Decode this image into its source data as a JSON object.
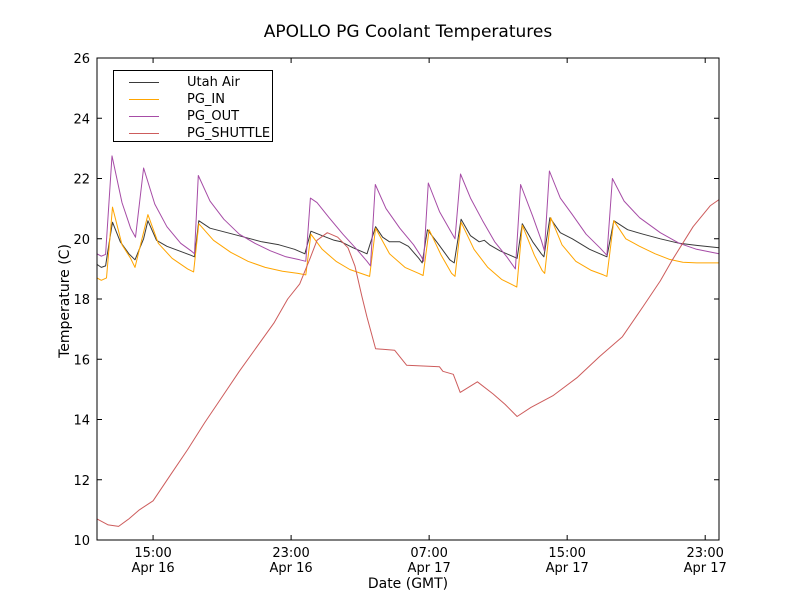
{
  "chart_data": {
    "type": "line",
    "title": "APOLLO PG Coolant Temperatures",
    "xlabel": "Date (GMT)",
    "ylabel": "Temperature (C)",
    "legend_position": "upper-left",
    "grid": false,
    "axes": {
      "x_unit": "hours since Apr 16 00:00 GMT",
      "x_range": [
        11.75,
        47.8
      ],
      "y_range": [
        10,
        26
      ]
    },
    "x_ticks": [
      {
        "t": 15,
        "time": "15:00",
        "date": "Apr 16"
      },
      {
        "t": 23,
        "time": "23:00",
        "date": "Apr 16"
      },
      {
        "t": 31,
        "time": "07:00",
        "date": "Apr 17"
      },
      {
        "t": 39,
        "time": "15:00",
        "date": "Apr 17"
      },
      {
        "t": 47,
        "time": "23:00",
        "date": "Apr 17"
      }
    ],
    "y_ticks": [
      10,
      12,
      14,
      16,
      18,
      20,
      22,
      24,
      26
    ],
    "series": [
      {
        "name": "Utah Air",
        "color": "#3a3a3a",
        "points": [
          [
            11.75,
            19.15
          ],
          [
            12.0,
            19.05
          ],
          [
            12.25,
            19.1
          ],
          [
            12.35,
            19.5
          ],
          [
            12.65,
            20.55
          ],
          [
            13.1,
            19.9
          ],
          [
            13.6,
            19.5
          ],
          [
            13.95,
            19.3
          ],
          [
            14.45,
            20.0
          ],
          [
            14.7,
            20.6
          ],
          [
            15.2,
            19.95
          ],
          [
            15.8,
            19.75
          ],
          [
            16.5,
            19.6
          ],
          [
            17.2,
            19.45
          ],
          [
            17.4,
            19.4
          ],
          [
            17.65,
            20.6
          ],
          [
            18.3,
            20.35
          ],
          [
            19.3,
            20.2
          ],
          [
            20.3,
            20.05
          ],
          [
            21.3,
            19.9
          ],
          [
            22.3,
            19.8
          ],
          [
            23.2,
            19.65
          ],
          [
            23.8,
            19.5
          ],
          [
            24.15,
            20.25
          ],
          [
            24.8,
            20.1
          ],
          [
            25.5,
            19.95
          ],
          [
            25.9,
            19.9
          ],
          [
            26.6,
            19.7
          ],
          [
            27.4,
            19.5
          ],
          [
            27.9,
            20.4
          ],
          [
            28.3,
            20.05
          ],
          [
            28.7,
            19.9
          ],
          [
            29.3,
            19.9
          ],
          [
            29.8,
            19.75
          ],
          [
            30.4,
            19.35
          ],
          [
            30.6,
            19.2
          ],
          [
            30.9,
            20.3
          ],
          [
            31.5,
            19.85
          ],
          [
            32.2,
            19.3
          ],
          [
            32.45,
            19.2
          ],
          [
            32.85,
            20.65
          ],
          [
            33.4,
            20.1
          ],
          [
            33.9,
            19.9
          ],
          [
            34.2,
            19.95
          ],
          [
            34.5,
            19.8
          ],
          [
            35.1,
            19.6
          ],
          [
            35.9,
            19.4
          ],
          [
            36.1,
            19.35
          ],
          [
            36.4,
            20.5
          ],
          [
            37.0,
            19.9
          ],
          [
            37.5,
            19.5
          ],
          [
            37.65,
            19.4
          ],
          [
            38.0,
            20.7
          ],
          [
            38.6,
            20.2
          ],
          [
            39.3,
            20.0
          ],
          [
            40.3,
            19.65
          ],
          [
            41.1,
            19.45
          ],
          [
            41.3,
            19.4
          ],
          [
            41.7,
            20.6
          ],
          [
            42.5,
            20.3
          ],
          [
            43.4,
            20.15
          ],
          [
            44.4,
            20.0
          ],
          [
            45.5,
            19.85
          ],
          [
            46.5,
            19.78
          ],
          [
            47.8,
            19.7
          ]
        ]
      },
      {
        "name": "PG_IN",
        "color": "#ffa500",
        "points": [
          [
            11.75,
            18.7
          ],
          [
            12.0,
            18.62
          ],
          [
            12.3,
            18.7
          ],
          [
            12.65,
            21.05
          ],
          [
            13.2,
            19.8
          ],
          [
            13.7,
            19.35
          ],
          [
            13.95,
            19.05
          ],
          [
            14.7,
            20.8
          ],
          [
            15.3,
            19.85
          ],
          [
            16.1,
            19.35
          ],
          [
            17.0,
            19.0
          ],
          [
            17.35,
            18.9
          ],
          [
            17.65,
            20.5
          ],
          [
            18.5,
            19.95
          ],
          [
            19.5,
            19.55
          ],
          [
            20.5,
            19.25
          ],
          [
            21.5,
            19.05
          ],
          [
            22.5,
            18.92
          ],
          [
            23.4,
            18.85
          ],
          [
            23.85,
            18.8
          ],
          [
            24.15,
            20.15
          ],
          [
            24.8,
            19.65
          ],
          [
            25.6,
            19.25
          ],
          [
            26.4,
            18.98
          ],
          [
            27.3,
            18.8
          ],
          [
            27.55,
            18.75
          ],
          [
            27.9,
            20.35
          ],
          [
            28.7,
            19.5
          ],
          [
            29.6,
            19.05
          ],
          [
            30.4,
            18.85
          ],
          [
            30.65,
            18.78
          ],
          [
            31.0,
            20.3
          ],
          [
            31.7,
            19.45
          ],
          [
            32.3,
            18.85
          ],
          [
            32.5,
            18.75
          ],
          [
            32.85,
            20.55
          ],
          [
            33.6,
            19.65
          ],
          [
            34.4,
            19.05
          ],
          [
            35.2,
            18.65
          ],
          [
            35.9,
            18.45
          ],
          [
            36.08,
            18.4
          ],
          [
            36.4,
            20.45
          ],
          [
            37.1,
            19.45
          ],
          [
            37.55,
            18.95
          ],
          [
            37.7,
            18.85
          ],
          [
            38.05,
            20.7
          ],
          [
            38.7,
            19.8
          ],
          [
            39.5,
            19.25
          ],
          [
            40.4,
            18.95
          ],
          [
            41.1,
            18.8
          ],
          [
            41.3,
            18.75
          ],
          [
            41.7,
            20.6
          ],
          [
            42.4,
            20.0
          ],
          [
            43.2,
            19.75
          ],
          [
            44.1,
            19.5
          ],
          [
            44.9,
            19.32
          ],
          [
            45.7,
            19.22
          ],
          [
            46.5,
            19.2
          ],
          [
            47.8,
            19.2
          ]
        ]
      },
      {
        "name": "PG_OUT",
        "color": "#a64ca6",
        "points": [
          [
            11.75,
            19.5
          ],
          [
            12.0,
            19.42
          ],
          [
            12.25,
            19.48
          ],
          [
            12.62,
            22.75
          ],
          [
            13.2,
            21.2
          ],
          [
            13.7,
            20.35
          ],
          [
            13.98,
            20.05
          ],
          [
            14.45,
            22.35
          ],
          [
            15.1,
            21.15
          ],
          [
            15.8,
            20.4
          ],
          [
            16.6,
            19.85
          ],
          [
            17.2,
            19.6
          ],
          [
            17.4,
            19.5
          ],
          [
            17.62,
            22.1
          ],
          [
            18.3,
            21.25
          ],
          [
            19.1,
            20.65
          ],
          [
            20.0,
            20.15
          ],
          [
            20.9,
            19.85
          ],
          [
            21.8,
            19.6
          ],
          [
            22.7,
            19.4
          ],
          [
            23.5,
            19.3
          ],
          [
            23.85,
            19.25
          ],
          [
            24.12,
            21.35
          ],
          [
            24.5,
            21.2
          ],
          [
            25.2,
            20.7
          ],
          [
            26.0,
            20.15
          ],
          [
            26.8,
            19.65
          ],
          [
            27.4,
            19.25
          ],
          [
            27.6,
            19.1
          ],
          [
            27.88,
            21.8
          ],
          [
            28.5,
            21.0
          ],
          [
            29.3,
            20.35
          ],
          [
            30.1,
            19.8
          ],
          [
            30.55,
            19.4
          ],
          [
            30.68,
            19.25
          ],
          [
            30.95,
            21.85
          ],
          [
            31.6,
            20.9
          ],
          [
            32.2,
            20.3
          ],
          [
            32.5,
            20.0
          ],
          [
            32.82,
            22.15
          ],
          [
            33.4,
            21.35
          ],
          [
            34.1,
            20.6
          ],
          [
            34.8,
            19.9
          ],
          [
            35.5,
            19.4
          ],
          [
            36.0,
            19.0
          ],
          [
            36.3,
            21.8
          ],
          [
            37.0,
            20.75
          ],
          [
            37.5,
            19.95
          ],
          [
            37.68,
            19.6
          ],
          [
            37.97,
            22.25
          ],
          [
            38.6,
            21.35
          ],
          [
            39.3,
            20.8
          ],
          [
            40.1,
            20.15
          ],
          [
            40.9,
            19.7
          ],
          [
            41.3,
            19.45
          ],
          [
            41.62,
            22.0
          ],
          [
            42.3,
            21.25
          ],
          [
            43.2,
            20.7
          ],
          [
            44.4,
            20.2
          ],
          [
            45.5,
            19.85
          ],
          [
            46.5,
            19.65
          ],
          [
            47.8,
            19.5
          ]
        ]
      },
      {
        "name": "PG_SHUTTLE",
        "color": "#cd5c5c",
        "points": [
          [
            11.75,
            10.7
          ],
          [
            12.4,
            10.5
          ],
          [
            13.0,
            10.45
          ],
          [
            13.6,
            10.7
          ],
          [
            14.2,
            11.0
          ],
          [
            15.0,
            11.3
          ],
          [
            16.0,
            12.15
          ],
          [
            17.0,
            13.0
          ],
          [
            18.0,
            13.9
          ],
          [
            19.0,
            14.75
          ],
          [
            20.0,
            15.6
          ],
          [
            21.0,
            16.4
          ],
          [
            22.0,
            17.2
          ],
          [
            22.8,
            18.0
          ],
          [
            23.5,
            18.5
          ],
          [
            24.1,
            19.35
          ],
          [
            24.5,
            19.95
          ],
          [
            25.1,
            20.2
          ],
          [
            25.7,
            20.05
          ],
          [
            26.3,
            19.7
          ],
          [
            26.7,
            19.1
          ],
          [
            27.1,
            18.1
          ],
          [
            27.4,
            17.4
          ],
          [
            27.9,
            16.35
          ],
          [
            29.0,
            16.3
          ],
          [
            29.7,
            15.8
          ],
          [
            31.6,
            15.75
          ],
          [
            31.8,
            15.6
          ],
          [
            32.4,
            15.5
          ],
          [
            32.8,
            14.9
          ],
          [
            33.8,
            15.25
          ],
          [
            34.7,
            14.85
          ],
          [
            35.4,
            14.5
          ],
          [
            36.1,
            14.1
          ],
          [
            36.9,
            14.4
          ],
          [
            38.2,
            14.8
          ],
          [
            39.6,
            15.4
          ],
          [
            40.9,
            16.1
          ],
          [
            42.2,
            16.75
          ],
          [
            43.4,
            17.75
          ],
          [
            44.4,
            18.6
          ],
          [
            45.1,
            19.3
          ],
          [
            46.3,
            20.4
          ],
          [
            47.3,
            21.1
          ],
          [
            47.8,
            21.3
          ]
        ]
      }
    ]
  }
}
